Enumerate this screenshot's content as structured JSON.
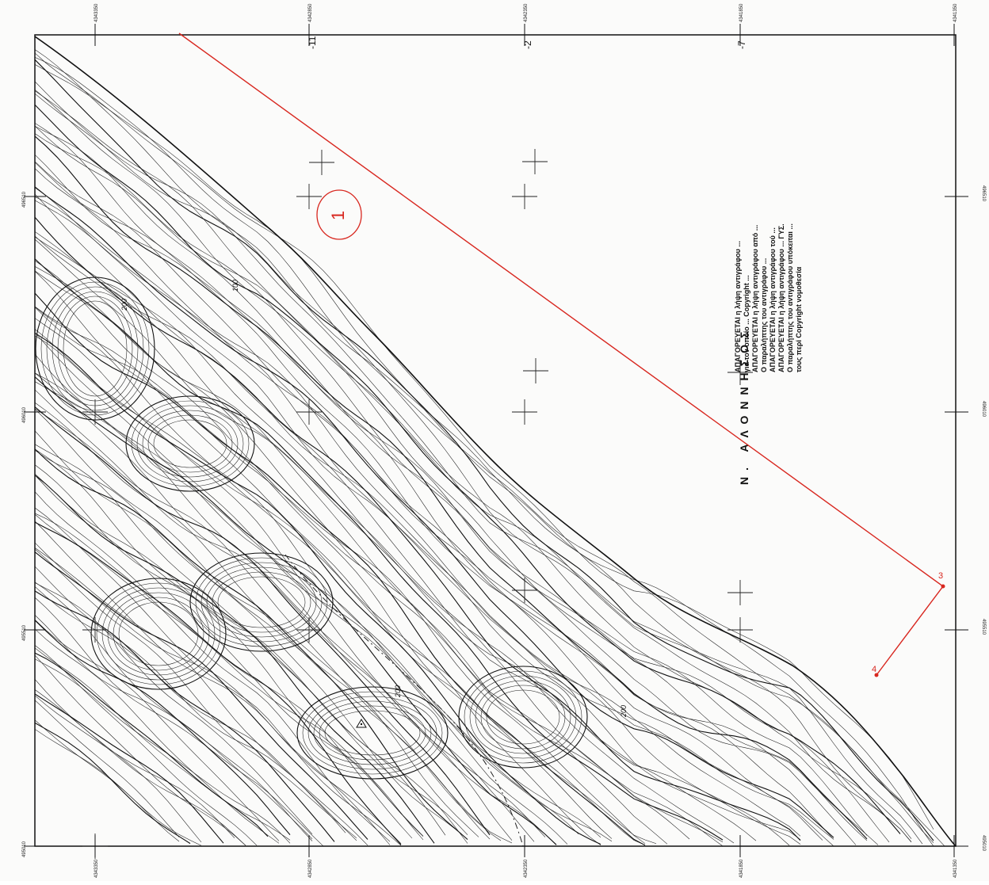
{
  "map": {
    "grid_labels": {
      "top": [
        "4343350",
        "4342850",
        "4342350",
        "4341850",
        "4341350"
      ],
      "bottom": [
        "4343350",
        "4342850",
        "4342350",
        "4341850",
        "4341350"
      ],
      "left": [
        "496510",
        "496010",
        "495510",
        "495010"
      ],
      "right": [
        "496510",
        "496010",
        "495510",
        "495010"
      ]
    },
    "top_sheet_numbers": [
      "-11",
      "-2",
      "-7"
    ],
    "island_label": "Ν. ΑΛΟΝΝΗΣΟΣ",
    "contour_labels": [
      "200",
      "200",
      "100",
      "200"
    ],
    "note_lines": [
      "ΑΠΑΓΟΡΕΥΕΤΑΙ η λήψη αντιγράφου ...",
      "για τον οποίο ... Copyright ...",
      "ΑΠΑΓΟΡΕΥΕΤΑΙ η λήψη αντιγράφου από ...",
      "Ο παραλήπτης του αντιγράφου ...",
      "ΑΠΑΓΟΡΕΥΕΤΑΙ η λήψη αντιγράφου τού ...",
      "ΑΠΑΓΟΡΕΥΕΤΑΙ η λήψη αντιγράφου ... ΓΥΣ.",
      "Ο παραλήπτης του αντιγράφου υπόκειται ...",
      "τους περί Copyright νομοθεσία"
    ],
    "parcel": {
      "circle_label": "1",
      "vertex_labels": [
        "3",
        "4"
      ],
      "line_color": "#d8271f"
    },
    "colors": {
      "ink": "#111111",
      "paper": "#fbfbfa",
      "boundary": "#d8271f"
    }
  }
}
